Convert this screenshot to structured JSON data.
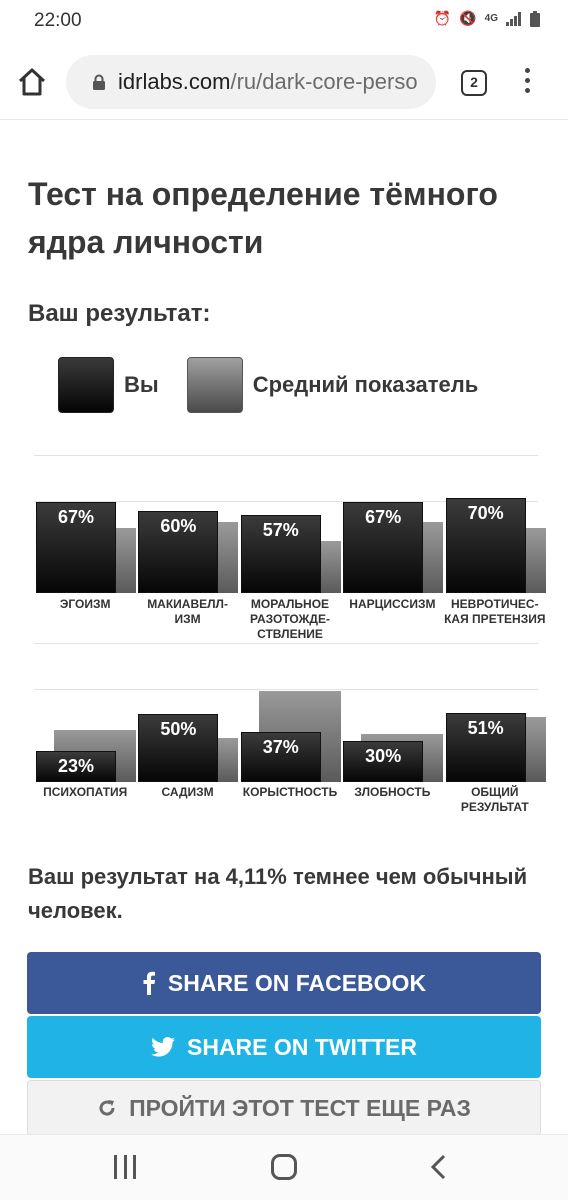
{
  "status": {
    "time": "22:00",
    "network": "4G"
  },
  "browser": {
    "url_domain": "idrlabs.com",
    "url_path": "/ru/dark-core-perso",
    "tab_count": "2"
  },
  "page": {
    "title": "Тест на определение тёмного ядра личности",
    "result_heading": "Ваш результат:",
    "legend": {
      "you": "Вы",
      "average": "Средний показатель"
    },
    "summary": "Ваш результат на 4,11% темнее чем обычный человек.",
    "buttons": {
      "facebook": "SHARE ON FACEBOOK",
      "twitter": "SHARE ON TWITTER",
      "retake": "ПРОЙТИ ЭТОТ ТЕСТ ЕЩЕ РАЗ"
    }
  },
  "colors": {
    "facebook": "#3b5998",
    "twitter": "#1fb3e6",
    "you_bar": "#111111",
    "average_bar": "#6e6e6e"
  },
  "chart_data": [
    {
      "type": "bar",
      "categories": [
        "ЭГОИЗМ",
        "МАКИАВЕЛЛ-ИЗМ",
        "МОРАЛЬНОЕ РАЗОТОЖДЕ-СТВЛЕНИЕ",
        "НАРЦИССИЗМ",
        "НЕВРОТИЧЕС-КАЯ ПРЕТЕНЗИЯ"
      ],
      "category_lines": [
        [
          "ЭГОИЗМ"
        ],
        [
          "МАКИАВЕЛЛ-",
          "ИЗМ"
        ],
        [
          "МОРАЛЬНОЕ",
          "РАЗОТОЖДЕ-",
          "СТВЛЕНИЕ"
        ],
        [
          "НАРЦИССИЗМ"
        ],
        [
          "НЕВРОТИЧЕС-",
          "КАЯ ПРЕТЕНЗИЯ"
        ]
      ],
      "series": [
        {
          "name": "Вы",
          "values": [
            67,
            60,
            57,
            67,
            70
          ],
          "labels": [
            "67%",
            "60%",
            "57%",
            "67%",
            "70%"
          ]
        },
        {
          "name": "Средний показатель",
          "values": [
            48,
            52,
            38,
            52,
            48
          ]
        }
      ],
      "ylim": [
        0,
        100
      ]
    },
    {
      "type": "bar",
      "categories": [
        "ПСИХОПАТИЯ",
        "САДИЗМ",
        "КОРЫСТНОСТЬ",
        "ЗЛОБНОСТЬ",
        "ОБЩИЙ РЕЗУЛЬТАТ"
      ],
      "category_lines": [
        [
          "ПСИХОПАТИЯ"
        ],
        [
          "САДИЗМ"
        ],
        [
          "КОРЫСТНОСТЬ"
        ],
        [
          "ЗЛОБНОСТЬ"
        ],
        [
          "ОБЩИЙ",
          "РЕЗУЛЬТАТ"
        ]
      ],
      "series": [
        {
          "name": "Вы",
          "values": [
            23,
            50,
            37,
            30,
            51
          ],
          "labels": [
            "23%",
            "50%",
            "37%",
            "30%",
            "51%"
          ]
        },
        {
          "name": "Средний показатель",
          "values": [
            38,
            32,
            67,
            35,
            48
          ]
        }
      ],
      "ylim": [
        0,
        100
      ]
    }
  ]
}
